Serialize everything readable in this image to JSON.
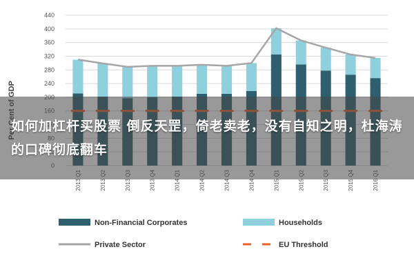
{
  "chart_data": {
    "type": "bar",
    "stacked": true,
    "ylabel": "Per Cent of GDP",
    "ylim": [
      0,
      440
    ],
    "yticks": [
      0,
      40,
      80,
      120,
      160,
      200,
      240,
      280,
      320,
      360,
      400,
      440
    ],
    "grid": true,
    "legend_position": "bottom",
    "categories": [
      "2013 Q1",
      "2013 Q2",
      "2013 Q3",
      "2013 Q4",
      "2014 Q1",
      "2014 Q2",
      "2014 Q3",
      "2014 Q4",
      "2015 Q1",
      "2015 Q2",
      "2015 Q3",
      "2015 Q4",
      "2016 Q1"
    ],
    "series": [
      {
        "name": "Non-Financial Corporates",
        "kind": "bar",
        "color": "#2d5f6e",
        "values": [
          211,
          202,
          197,
          200,
          202,
          210,
          210,
          218,
          325,
          296,
          278,
          266,
          256
        ]
      },
      {
        "name": "Households",
        "kind": "bar",
        "color": "#8fd0de",
        "values": [
          99,
          97,
          92,
          92,
          90,
          85,
          82,
          82,
          77,
          70,
          67,
          59,
          59
        ]
      },
      {
        "name": "Private Sector",
        "kind": "line",
        "color": "#a6a6a6",
        "values": [
          310,
          299,
          289,
          292,
          292,
          295,
          292,
          300,
          402,
          366,
          345,
          325,
          315
        ]
      },
      {
        "name": "EU Threshold",
        "kind": "dash",
        "color": "#e8632a",
        "values": [
          160,
          160,
          160,
          160,
          160,
          160,
          160,
          160,
          160,
          160,
          160,
          160,
          160
        ]
      }
    ]
  },
  "overlay": {
    "text": "如何加杠杆买股票 倒反天罡，倚老卖老，没有自知之明，杜海涛的口碑彻底翻车"
  }
}
